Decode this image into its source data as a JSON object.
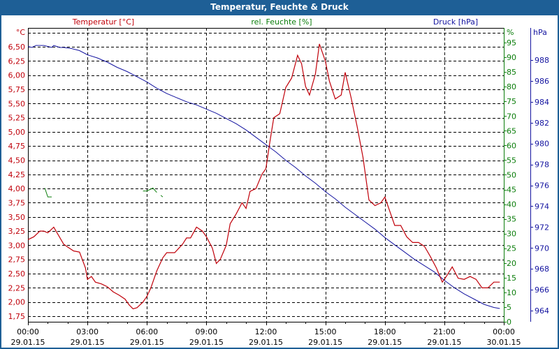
{
  "window": {
    "title": "Temperatur, Feuchte & Druck"
  },
  "colors": {
    "temperature": "#c0000a",
    "humidity": "#0a7d0a",
    "pressure": "#1414a0",
    "titlebar": "#1e5f96",
    "grid": "#000000"
  },
  "chart_data": {
    "type": "line",
    "title": "Temperatur, Feuchte & Druck",
    "legend": [
      "Temperatur [°C]",
      "rel. Feuchte [%]",
      "Druck [hPa]"
    ],
    "legend_position": "top",
    "grid": true,
    "xlabel": "",
    "x_ticks": [
      {
        "time": "00:00",
        "date": "29.01.15"
      },
      {
        "time": "03:00",
        "date": "29.01.15"
      },
      {
        "time": "06:00",
        "date": "29.01.15"
      },
      {
        "time": "09:00",
        "date": "29.01.15"
      },
      {
        "time": "12:00",
        "date": "29.01.15"
      },
      {
        "time": "15:00",
        "date": "29.01.15"
      },
      {
        "time": "18:00",
        "date": "29.01.15"
      },
      {
        "time": "21:00",
        "date": "29.01.15"
      },
      {
        "time": "00:00",
        "date": "30.01.15"
      }
    ],
    "xlim_hours": [
      0,
      24
    ],
    "axes": {
      "left": {
        "unit": "°C",
        "label": "Temperatur [°C]",
        "ticks": [
          "6,50",
          "6,25",
          "6,00",
          "5,75",
          "5,50",
          "5,25",
          "5,00",
          "4,75",
          "4,50",
          "4,25",
          "4,00",
          "3,75",
          "3,50",
          "3,25",
          "3,00",
          "2,75",
          "2,50",
          "2,25",
          "2,00",
          "1,75"
        ],
        "ylim": [
          1.65,
          6.85
        ]
      },
      "right1": {
        "unit": "%",
        "label": "rel. Feuchte [%]",
        "ticks": [
          "95",
          "90",
          "85",
          "80",
          "75",
          "70",
          "65",
          "60",
          "55",
          "50",
          "45",
          "40",
          "35",
          "30",
          "25",
          "20",
          "15",
          "10",
          "5",
          "0"
        ],
        "ylim": [
          0,
          95
        ]
      },
      "right2": {
        "unit": "hPa",
        "label": "Druck [hPa]",
        "ticks": [
          "988",
          "986",
          "984",
          "982",
          "980",
          "978",
          "976",
          "974",
          "972",
          "970",
          "968",
          "966",
          "964"
        ],
        "ylim": [
          963,
          991
        ]
      }
    },
    "series": [
      {
        "name": "Temperatur [°C]",
        "axis": "left",
        "x_hours": [
          0,
          0.3,
          0.6,
          0.8,
          1.0,
          1.3,
          1.5,
          1.8,
          2.0,
          2.3,
          2.6,
          2.9,
          3.0,
          3.2,
          3.4,
          3.7,
          4.0,
          4.3,
          4.6,
          4.9,
          5.1,
          5.3,
          5.5,
          5.8,
          6.0,
          6.2,
          6.5,
          6.8,
          7.0,
          7.4,
          7.8,
          8.0,
          8.2,
          8.5,
          8.8,
          9.0,
          9.3,
          9.5,
          9.7,
          10.0,
          10.2,
          10.5,
          10.8,
          11.0,
          11.2,
          11.5,
          11.8,
          12.0,
          12.2,
          12.4,
          12.7,
          13.0,
          13.3,
          13.6,
          13.8,
          14.0,
          14.2,
          14.5,
          14.7,
          15.0,
          15.2,
          15.5,
          15.8,
          16.0,
          16.3,
          16.6,
          16.9,
          17.2,
          17.5,
          17.8,
          18.0,
          18.2,
          18.5,
          18.8,
          19.1,
          19.4,
          19.7,
          20.0,
          20.3,
          20.6,
          20.9,
          21.1,
          21.4,
          21.7,
          22.0,
          22.3,
          22.6,
          22.9,
          23.2,
          23.5,
          23.8
        ],
        "values": [
          3.1,
          3.15,
          3.25,
          3.25,
          3.22,
          3.32,
          3.2,
          3.02,
          2.97,
          2.9,
          2.88,
          2.6,
          2.4,
          2.45,
          2.35,
          2.32,
          2.27,
          2.18,
          2.12,
          2.05,
          1.95,
          1.88,
          1.9,
          2.0,
          2.1,
          2.25,
          2.55,
          2.78,
          2.87,
          2.87,
          3.02,
          3.13,
          3.13,
          3.32,
          3.25,
          3.15,
          2.95,
          2.68,
          2.75,
          3.0,
          3.38,
          3.55,
          3.75,
          3.65,
          3.95,
          4.0,
          4.25,
          4.35,
          4.82,
          5.25,
          5.32,
          5.78,
          5.95,
          6.35,
          6.2,
          5.8,
          5.65,
          6.02,
          6.55,
          6.25,
          5.9,
          5.58,
          5.65,
          6.05,
          5.6,
          5.1,
          4.55,
          3.8,
          3.7,
          3.75,
          3.85,
          3.65,
          3.35,
          3.35,
          3.15,
          3.05,
          3.05,
          2.98,
          2.8,
          2.6,
          2.35,
          2.45,
          2.62,
          2.42,
          2.4,
          2.45,
          2.4,
          2.25,
          2.25,
          2.35,
          2.35
        ],
        "color": "#c0000a"
      },
      {
        "name": "rel. Feuchte [%]",
        "axis": "right1",
        "segments": [
          {
            "x_hours": [
              0.85,
              1.0,
              1.2
            ],
            "values": [
              45.5,
              42.5,
              42.5
            ]
          },
          {
            "x_hours": [
              5.8,
              6.0,
              6.3,
              6.5
            ],
            "values": [
              44.5,
              44.5,
              45.5,
              44.0
            ]
          },
          {
            "x_hours": [
              6.7,
              6.8
            ],
            "values": [
              43.0,
              42.5
            ]
          }
        ],
        "color": "#0a7d0a"
      },
      {
        "name": "Druck [hPa]",
        "axis": "right2",
        "x_hours": [
          0,
          0.2,
          0.4,
          0.8,
          1.2,
          1.3,
          1.6,
          1.8,
          2.2,
          2.6,
          3.0,
          3.5,
          4.0,
          4.5,
          5.0,
          5.5,
          6.0,
          6.5,
          7.0,
          7.5,
          8.0,
          8.5,
          9.0,
          9.5,
          10.0,
          10.5,
          11.0,
          11.5,
          12.0,
          12.5,
          13.0,
          13.5,
          14.0,
          14.5,
          15.0,
          15.5,
          16.0,
          16.5,
          17.0,
          17.5,
          18.0,
          18.5,
          19.0,
          19.5,
          20.0,
          20.5,
          21.0,
          21.5,
          22.0,
          22.5,
          23.0,
          23.5,
          23.8
        ],
        "values": [
          989.3,
          989.2,
          989.4,
          989.4,
          989.2,
          989.4,
          989.2,
          989.2,
          989.1,
          988.9,
          988.5,
          988.2,
          987.8,
          987.3,
          986.9,
          986.4,
          985.9,
          985.3,
          984.8,
          984.4,
          984.0,
          983.7,
          983.3,
          982.9,
          982.4,
          981.9,
          981.3,
          980.6,
          979.9,
          979.2,
          978.4,
          977.7,
          976.9,
          976.2,
          975.4,
          974.7,
          973.9,
          973.2,
          972.5,
          971.8,
          971.0,
          970.3,
          969.6,
          968.9,
          968.3,
          967.7,
          966.9,
          966.2,
          965.6,
          965.1,
          964.6,
          964.3,
          964.2
        ],
        "color": "#1414a0"
      }
    ]
  }
}
